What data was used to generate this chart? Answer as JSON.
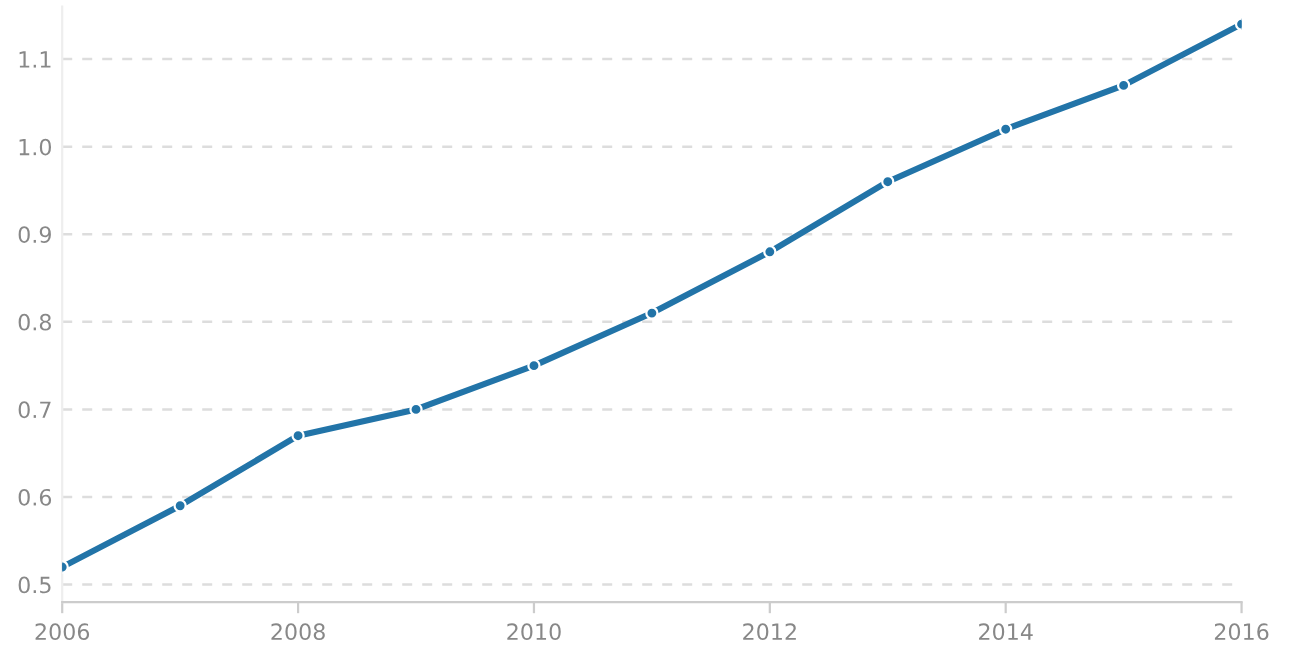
{
  "chart_data": {
    "type": "line",
    "x": [
      2006,
      2007,
      2008,
      2009,
      2010,
      2011,
      2012,
      2013,
      2014,
      2015,
      2016
    ],
    "series": [
      {
        "color": "#2274a8",
        "values": [
          0.52,
          0.59,
          0.67,
          0.7,
          0.75,
          0.81,
          0.88,
          0.96,
          1.02,
          1.07,
          1.14
        ]
      }
    ],
    "xlim": [
      2006,
      2016
    ],
    "xticks": [
      2006,
      2008,
      2010,
      2012,
      2014,
      2016
    ],
    "ylim": [
      0.48,
      1.16
    ],
    "yticks": [
      0.5,
      0.6,
      0.7,
      0.8,
      0.9,
      {
        "value": 1.0,
        "label": "1.0"
      },
      1.1
    ],
    "grid": "y",
    "marker": "circle",
    "line_style": "solid"
  }
}
